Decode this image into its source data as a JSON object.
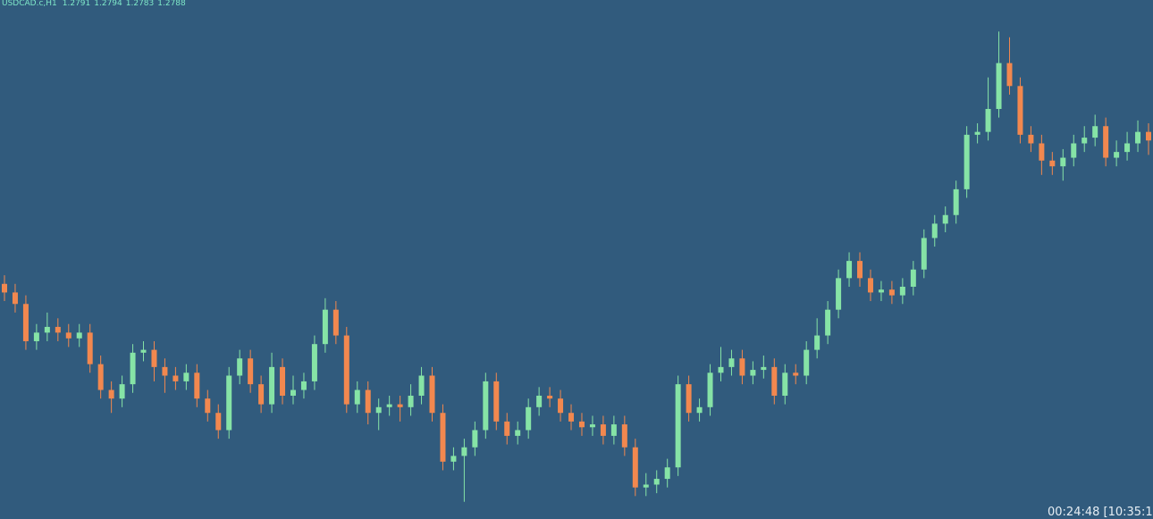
{
  "chart_data": {
    "type": "candlestick",
    "title": "USDCAD.c,H1",
    "timer": "00:24:48 [10:35:1",
    "up_color": "#86e3a6",
    "down_color": "#f2884f",
    "ylim": [
      1.2656,
      1.2837
    ],
    "open": [
      1.2738,
      1.2735,
      1.2731,
      1.2718,
      1.2721,
      1.2723,
      1.2721,
      1.2719,
      1.2721,
      1.271,
      1.2701,
      1.2698,
      1.2703,
      1.2714,
      1.2715,
      1.2709,
      1.2706,
      1.2704,
      1.2707,
      1.2698,
      1.2693,
      1.2687,
      1.2706,
      1.2712,
      1.2703,
      1.2696,
      1.2709,
      1.2699,
      1.2701,
      1.2704,
      1.2717,
      1.2729,
      1.272,
      1.2696,
      1.2701,
      1.2693,
      1.2695,
      1.2696,
      1.2695,
      1.2699,
      1.2706,
      1.2693,
      1.2676,
      1.2678,
      1.2681,
      1.2687,
      1.2704,
      1.269,
      1.2685,
      1.2687,
      1.2695,
      1.2699,
      1.2698,
      1.2693,
      1.269,
      1.2688,
      1.2689,
      1.2685,
      1.2689,
      1.2681,
      1.2667,
      1.2668,
      1.267,
      1.2674,
      1.2703,
      1.2693,
      1.2695,
      1.2707,
      1.2709,
      1.2712,
      1.2706,
      1.2708,
      1.2709,
      1.2699,
      1.2707,
      1.2706,
      1.2715,
      1.272,
      1.2729,
      1.274,
      1.2746,
      1.274,
      1.2735,
      1.2736,
      1.2734,
      1.2737,
      1.2743,
      1.2754,
      1.2759,
      1.2762,
      1.2771,
      1.279,
      1.2791,
      1.2799,
      1.2815,
      1.2807,
      1.279,
      1.2787,
      1.2781,
      1.2779,
      1.2782,
      1.2787,
      1.2789,
      1.2793,
      1.2782,
      1.2784,
      1.2787,
      1.2791
    ],
    "high": [
      1.2741,
      1.2738,
      1.2734,
      1.2724,
      1.2728,
      1.2726,
      1.2724,
      1.2724,
      1.2724,
      1.2713,
      1.2704,
      1.2706,
      1.2717,
      1.2718,
      1.2718,
      1.2712,
      1.2709,
      1.271,
      1.271,
      1.2701,
      1.2696,
      1.2709,
      1.2715,
      1.2715,
      1.2706,
      1.2714,
      1.2712,
      1.2706,
      1.2707,
      1.272,
      1.2733,
      1.2732,
      1.2723,
      1.2704,
      1.2704,
      1.2698,
      1.2699,
      1.2699,
      1.2703,
      1.2709,
      1.2709,
      1.2696,
      1.2681,
      1.2684,
      1.269,
      1.2707,
      1.2707,
      1.2693,
      1.269,
      1.2698,
      1.2702,
      1.2702,
      1.2701,
      1.2696,
      1.2693,
      1.2692,
      1.2692,
      1.2692,
      1.2692,
      1.2684,
      1.2672,
      1.2673,
      1.2677,
      1.2706,
      1.2706,
      1.2698,
      1.271,
      1.2716,
      1.2715,
      1.2715,
      1.2711,
      1.2713,
      1.2712,
      1.271,
      1.271,
      1.2718,
      1.2726,
      1.2732,
      1.2743,
      1.2749,
      1.2749,
      1.2743,
      1.2739,
      1.2739,
      1.274,
      1.2746,
      1.2757,
      1.2762,
      1.2765,
      1.2774,
      1.2793,
      1.2794,
      1.281,
      1.2826,
      1.2824,
      1.281,
      1.2793,
      1.279,
      1.2784,
      1.2785,
      1.279,
      1.2793,
      1.2797,
      1.2796,
      1.2788,
      1.2791,
      1.2795,
      1.2794
    ],
    "low": [
      1.2732,
      1.2728,
      1.2715,
      1.2715,
      1.2718,
      1.2718,
      1.2716,
      1.2716,
      1.2707,
      1.2698,
      1.2693,
      1.2695,
      1.27,
      1.2711,
      1.2704,
      1.27,
      1.2701,
      1.2701,
      1.2695,
      1.269,
      1.2684,
      1.2684,
      1.2703,
      1.27,
      1.2693,
      1.2693,
      1.2696,
      1.2696,
      1.2698,
      1.2701,
      1.2714,
      1.2717,
      1.2693,
      1.2693,
      1.2689,
      1.2687,
      1.2692,
      1.269,
      1.2692,
      1.2696,
      1.269,
      1.2673,
      1.2673,
      1.2662,
      1.2678,
      1.2684,
      1.2687,
      1.2682,
      1.2682,
      1.2684,
      1.2692,
      1.2695,
      1.269,
      1.2687,
      1.2685,
      1.2685,
      1.2682,
      1.2682,
      1.2678,
      1.2664,
      1.2664,
      1.2665,
      1.2667,
      1.2671,
      1.269,
      1.269,
      1.2692,
      1.2704,
      1.2706,
      1.2703,
      1.2703,
      1.2705,
      1.2696,
      1.2696,
      1.2703,
      1.2703,
      1.2712,
      1.2717,
      1.2726,
      1.2737,
      1.2737,
      1.2732,
      1.2732,
      1.2731,
      1.2731,
      1.2734,
      1.274,
      1.2751,
      1.2756,
      1.2759,
      1.2768,
      1.2787,
      1.2788,
      1.2796,
      1.2804,
      1.2787,
      1.2784,
      1.2776,
      1.2776,
      1.2774,
      1.2779,
      1.2784,
      1.2786,
      1.2779,
      1.2779,
      1.2781,
      1.2784,
      1.2783
    ],
    "close": [
      1.2735,
      1.2731,
      1.2718,
      1.2721,
      1.2723,
      1.2721,
      1.2719,
      1.2721,
      1.271,
      1.2701,
      1.2698,
      1.2703,
      1.2714,
      1.2715,
      1.2709,
      1.2706,
      1.2704,
      1.2707,
      1.2698,
      1.2693,
      1.2687,
      1.2706,
      1.2712,
      1.2703,
      1.2696,
      1.2709,
      1.2699,
      1.2701,
      1.2704,
      1.2717,
      1.2729,
      1.272,
      1.2696,
      1.2701,
      1.2693,
      1.2695,
      1.2696,
      1.2695,
      1.2699,
      1.2706,
      1.2693,
      1.2676,
      1.2678,
      1.2681,
      1.2687,
      1.2704,
      1.269,
      1.2685,
      1.2687,
      1.2695,
      1.2699,
      1.2698,
      1.2693,
      1.269,
      1.2688,
      1.2689,
      1.2685,
      1.2689,
      1.2681,
      1.2667,
      1.2668,
      1.267,
      1.2674,
      1.2703,
      1.2693,
      1.2695,
      1.2707,
      1.2709,
      1.2712,
      1.2706,
      1.2708,
      1.2709,
      1.2699,
      1.2707,
      1.2706,
      1.2715,
      1.272,
      1.2729,
      1.274,
      1.2746,
      1.274,
      1.2735,
      1.2736,
      1.2734,
      1.2737,
      1.2743,
      1.2754,
      1.2759,
      1.2762,
      1.2771,
      1.279,
      1.2791,
      1.2799,
      1.2815,
      1.2807,
      1.279,
      1.2787,
      1.2781,
      1.2779,
      1.2782,
      1.2787,
      1.2789,
      1.2793,
      1.2782,
      1.2784,
      1.2787,
      1.2791,
      1.2788
    ]
  }
}
